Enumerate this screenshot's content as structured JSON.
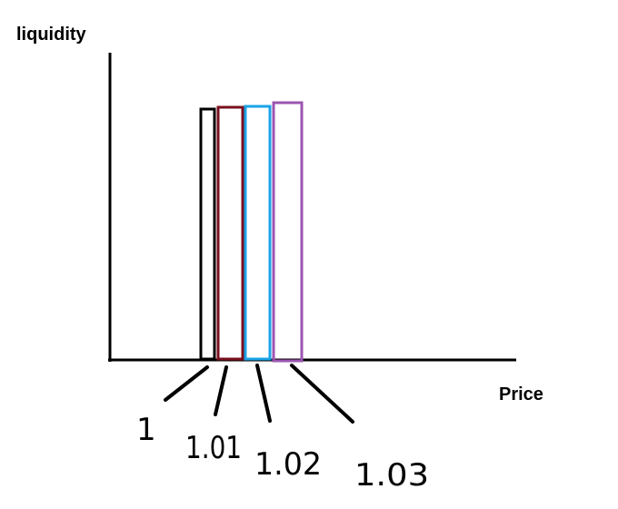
{
  "chart_data": {
    "type": "bar",
    "ylabel": "liquidity",
    "xlabel": "Price",
    "categories": [
      "1",
      "1.01",
      "1.02",
      "1.03"
    ],
    "tick_labels": [
      "1",
      "1.01",
      "1.02",
      "1.03"
    ],
    "series_colors": [
      "#000000",
      "#7a0f1e",
      "#1aa3e8",
      "#9b55b0"
    ],
    "grid": false,
    "legend": "none"
  }
}
